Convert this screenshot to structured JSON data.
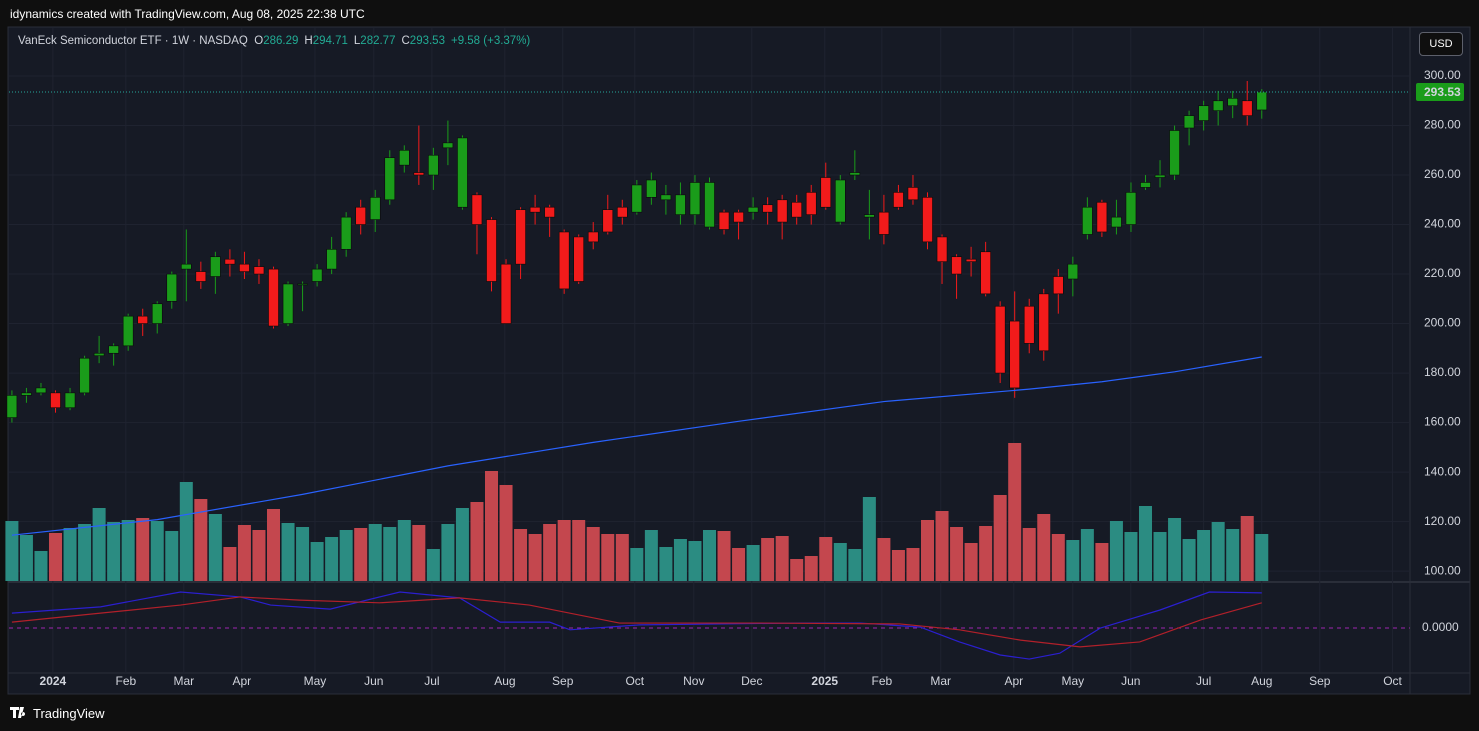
{
  "caption": "idynamics created with TradingView.com, Aug 08, 2025 22:38 UTC",
  "header": {
    "symbol": "VanEck Semiconductor ETF · 1W · NASDAQ",
    "ohlc": [
      {
        "key": "O",
        "value": "286.29"
      },
      {
        "key": "H",
        "value": "294.71"
      },
      {
        "key": "L",
        "value": "282.77"
      },
      {
        "key": "C",
        "value": "293.53"
      }
    ],
    "change": "+9.58 (+3.37%)"
  },
  "currency": "USD",
  "footer": "TradingView",
  "chart_data": [
    {
      "type": "candlestick",
      "xlim": [
        -0.2,
        96.2
      ],
      "xticks": [
        {
          "value": 2.82,
          "label": "2024"
        },
        {
          "value": 7.84,
          "label": "Feb"
        },
        {
          "value": 11.83,
          "label": "Mar"
        },
        {
          "value": 15.82,
          "label": "Apr"
        },
        {
          "value": 20.85,
          "label": "May"
        },
        {
          "value": 24.9,
          "label": "Jun"
        },
        {
          "value": 28.9,
          "label": "Jul"
        },
        {
          "value": 33.92,
          "label": "Aug"
        },
        {
          "value": 37.9,
          "label": "Sep"
        },
        {
          "value": 42.86,
          "label": "Oct"
        },
        {
          "value": 46.92,
          "label": "Nov"
        },
        {
          "value": 50.91,
          "label": "Dec"
        },
        {
          "value": 55.93,
          "label": "2025"
        },
        {
          "value": 59.86,
          "label": "Feb"
        },
        {
          "value": 63.91,
          "label": "Mar"
        },
        {
          "value": 68.94,
          "label": "Apr"
        },
        {
          "value": 73.0,
          "label": "May"
        },
        {
          "value": 76.99,
          "label": "Jun"
        },
        {
          "value": 82.0,
          "label": "Jul"
        },
        {
          "value": 86.0,
          "label": "Aug"
        },
        {
          "value": 89.99,
          "label": "Sep"
        },
        {
          "value": 95.0,
          "label": "Oct"
        }
      ],
      "ylim": [
        96,
        319.4
      ],
      "yticks": [
        {
          "value": 300,
          "label": "300.00"
        },
        {
          "value": 280,
          "label": "280.00"
        },
        {
          "value": 260,
          "label": "260.00"
        },
        {
          "value": 240,
          "label": "240.00"
        },
        {
          "value": 220,
          "label": "220.00"
        },
        {
          "value": 200,
          "label": "200.00"
        },
        {
          "value": 180,
          "label": "180.00"
        },
        {
          "value": 160,
          "label": "160.00"
        },
        {
          "value": 140,
          "label": "140.00"
        },
        {
          "value": 120,
          "label": "120.00"
        },
        {
          "value": 100,
          "label": "100.00"
        }
      ],
      "grid": true,
      "up_color": "#1a9c1a",
      "down_color": "#f21b1b",
      "open": [
        162,
        171,
        172,
        172,
        166,
        172,
        187,
        188,
        191,
        203,
        200,
        209,
        222,
        221,
        219,
        226,
        224,
        223,
        222,
        200,
        216,
        217,
        222,
        230,
        247,
        242,
        250,
        264,
        261,
        260,
        271,
        247,
        252,
        242,
        224,
        246,
        247,
        247,
        237,
        235,
        237,
        246,
        247,
        245,
        251,
        250,
        244,
        244,
        239,
        245,
        245,
        245,
        248,
        250,
        249,
        253,
        259,
        241,
        260,
        243,
        245,
        253,
        255,
        251,
        235,
        227,
        226,
        229,
        207,
        201,
        207,
        212,
        219,
        218,
        236,
        249,
        239,
        240,
        255,
        259,
        260,
        279,
        282,
        286,
        288,
        290,
        286.29
      ],
      "high": [
        173,
        174,
        176,
        173,
        174,
        187,
        195,
        192,
        204,
        206,
        209,
        221,
        238,
        225,
        229,
        230,
        229,
        226,
        223,
        217,
        217,
        224,
        235,
        245,
        250,
        254,
        270,
        272,
        280,
        271,
        282,
        276,
        253,
        243,
        226,
        247,
        252,
        248,
        238,
        236,
        241,
        252,
        250,
        258,
        261,
        256,
        257,
        260,
        259,
        246,
        246,
        251,
        251,
        252,
        252,
        256,
        265,
        260,
        270,
        254,
        252,
        256,
        260,
        253,
        236,
        228,
        231,
        233,
        209,
        213,
        210,
        214,
        222,
        227,
        251,
        250,
        250,
        257,
        260,
        266,
        280,
        286,
        290,
        294,
        294,
        298,
        294.71
      ],
      "low": [
        160,
        168,
        171,
        164,
        165,
        171,
        184,
        183,
        189,
        195,
        196,
        206,
        209,
        214,
        212,
        219,
        218,
        216,
        198,
        199,
        205,
        215,
        220,
        227,
        236,
        237,
        248,
        261,
        256,
        254,
        264,
        246,
        228,
        213,
        200,
        218,
        240,
        235,
        212,
        216,
        230,
        236,
        240,
        244,
        248,
        244,
        240,
        240,
        238,
        236,
        234,
        242,
        240,
        234,
        240,
        240,
        246,
        240,
        258,
        234,
        232,
        246,
        248,
        230,
        216,
        210,
        219,
        211,
        176,
        170,
        188,
        185,
        204,
        211,
        234,
        235,
        236,
        237,
        254,
        255,
        258,
        272,
        278,
        280,
        283,
        280,
        282.77
      ],
      "close": [
        171,
        172,
        174,
        166,
        172,
        186,
        188,
        191,
        203,
        200,
        208,
        220,
        224,
        217,
        227,
        224,
        221,
        220,
        199,
        216,
        216,
        222,
        230,
        243,
        240,
        251,
        267,
        270,
        260,
        268,
        273,
        275,
        240,
        217,
        200,
        224,
        245,
        243,
        214,
        217,
        233,
        237,
        243,
        256,
        258,
        252,
        252,
        257,
        257,
        238,
        241,
        247,
        245,
        241,
        243,
        244,
        247,
        258,
        261,
        244,
        236,
        247,
        250,
        233,
        225,
        220,
        225,
        212,
        180,
        174,
        192,
        189,
        212,
        224,
        247,
        237,
        243,
        253,
        257,
        260,
        278,
        284,
        288,
        290,
        291,
        284,
        293.53
      ],
      "volume": [
        60,
        46,
        30,
        48,
        53,
        57,
        73,
        59,
        61,
        63,
        60,
        50,
        99,
        82,
        67,
        34,
        56,
        51,
        72,
        58,
        54,
        39,
        44,
        51,
        53,
        57,
        54,
        61,
        56,
        32,
        57,
        73,
        79,
        110,
        96,
        52,
        47,
        57,
        61,
        61,
        54,
        47,
        47,
        33,
        51,
        34,
        42,
        40,
        51,
        50,
        33,
        36,
        43,
        45,
        22,
        25,
        44,
        38,
        32,
        84,
        43,
        31,
        33,
        61,
        70,
        54,
        38,
        55,
        86,
        138,
        53,
        67,
        47,
        41,
        52,
        38,
        60,
        49,
        75,
        49,
        63,
        42,
        51,
        59,
        52,
        65,
        47
      ],
      "volume_up_color": "#2b8c82",
      "volume_down_color": "#c4474e",
      "overlay": {
        "type": "line",
        "color": "#2962ff",
        "x": [
          0,
          10,
          20,
          30,
          40,
          50,
          60,
          70,
          75,
          80,
          86
        ],
        "values": [
          114.5,
          120.8,
          131,
          142.5,
          152,
          160.5,
          168.5,
          173.5,
          176.5,
          180.5,
          186.5
        ]
      },
      "last_price": 293.53,
      "last_price_color": "#1a9c1a"
    },
    {
      "type": "line",
      "xlim": [
        -0.2,
        96.2
      ],
      "ylim": [
        -1,
        1
      ],
      "yticks": [
        {
          "value": 0,
          "label": "0.0000"
        }
      ],
      "series": [
        {
          "color": "#2b1fd0",
          "x": [
            0,
            6.1,
            11.6,
            15.7,
            17.8,
            21.9,
            26.7,
            30.8,
            33.6,
            37,
            38.4,
            43.2,
            54.2,
            58.4,
            62.5,
            65.2,
            68,
            70,
            72.1,
            74.9,
            79,
            82.4,
            86
          ],
          "values": [
            0.33,
            0.47,
            0.8,
            0.69,
            0.51,
            0.42,
            0.8,
            0.67,
            0.13,
            0.13,
            -0.04,
            0.07,
            0.11,
            0.11,
            0.02,
            -0.31,
            -0.6,
            -0.69,
            -0.56,
            0,
            0.4,
            0.8,
            0.78
          ]
        },
        {
          "color": "#b2202a",
          "x": [
            0,
            6.1,
            11.6,
            15.7,
            19.8,
            25.3,
            30.8,
            35.6,
            41.8,
            51.5,
            61.1,
            65.2,
            69.4,
            73.5,
            77.6,
            81.8,
            86
          ],
          "values": [
            0.13,
            0.33,
            0.51,
            0.69,
            0.62,
            0.56,
            0.67,
            0.51,
            0.11,
            0.11,
            0.09,
            -0.04,
            -0.27,
            -0.42,
            -0.31,
            0.18,
            0.56
          ]
        }
      ]
    }
  ]
}
